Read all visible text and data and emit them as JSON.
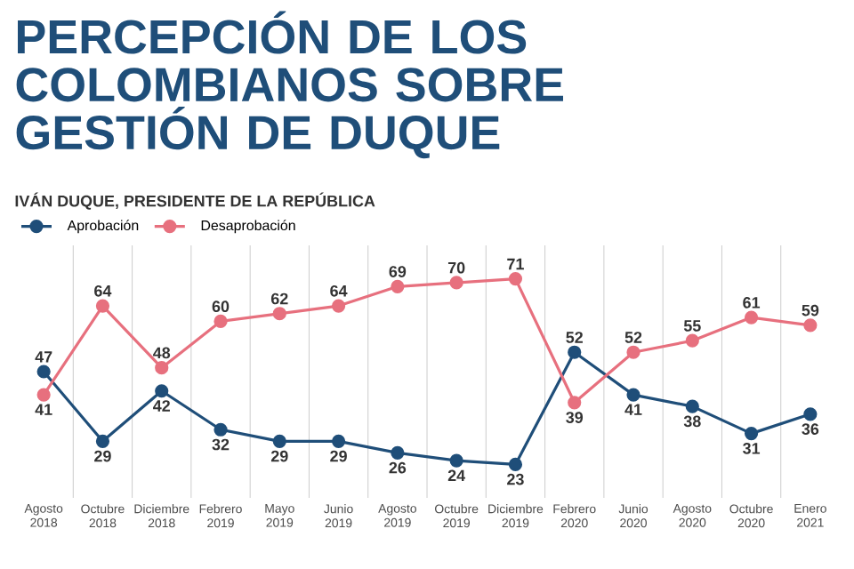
{
  "chart_data": {
    "type": "line",
    "title": "PERCEPCIÓN DE LOS COLOMBIANOS SOBRE GESTIÓN DE DUQUE",
    "subtitle": "IVÁN DUQUE, PRESIDENTE DE LA REPÚBLICA",
    "categories": [
      "Agosto 2018",
      "Octubre 2018",
      "Diciembre 2018",
      "Febrero 2019",
      "Mayo 2019",
      "Junio 2019",
      "Agosto 2019",
      "Octubre 2019",
      "Diciembre 2019",
      "Febrero 2020",
      "Junio 2020",
      "Agosto 2020",
      "Octubre 2020",
      "Enero 2021"
    ],
    "series": [
      {
        "name": "Aprobación",
        "color": "#1f4e79",
        "values": [
          47,
          29,
          42,
          32,
          29,
          29,
          26,
          24,
          23,
          52,
          41,
          38,
          31,
          36
        ]
      },
      {
        "name": "Desaprobación",
        "color": "#e7707e",
        "values": [
          41,
          64,
          48,
          60,
          62,
          64,
          69,
          70,
          71,
          39,
          52,
          55,
          61,
          59
        ]
      }
    ],
    "data_labels": true,
    "marker": "circle",
    "line_style": "solid",
    "grid": "x",
    "legend": "top left"
  }
}
